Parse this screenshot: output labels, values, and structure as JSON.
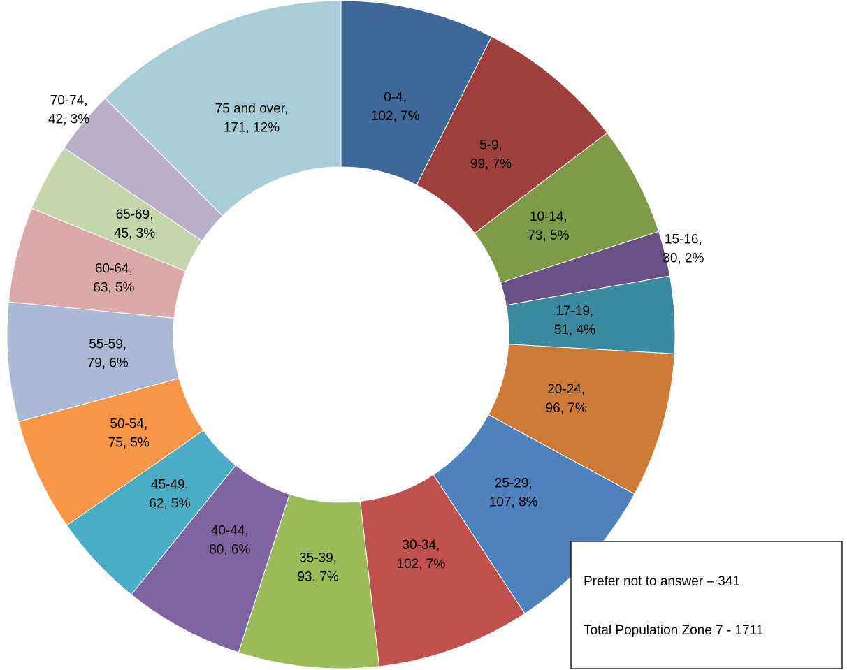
{
  "chart_data": {
    "type": "donut",
    "categories": [
      "0-4,",
      "5-9,",
      "10-14,",
      "15-16,",
      "17-19,",
      "20-24,",
      "25-29,",
      "30-34,",
      "35-39,",
      "40-44,",
      "45-49,",
      "50-54,",
      "55-59,",
      "60-64,",
      "65-69,",
      "70-74,",
      "75 and over,"
    ],
    "values": [
      102,
      99,
      73,
      30,
      51,
      96,
      107,
      102,
      93,
      80,
      62,
      75,
      79,
      63,
      45,
      42,
      171
    ],
    "value_labels": [
      "102, 7%",
      "99, 7%",
      "73, 5%",
      "30, 2%",
      "51, 4%",
      "96, 7%",
      "107, 8%",
      "102, 7%",
      "93, 7%",
      "80, 6%",
      "62, 5%",
      "75, 5%",
      "79, 6%",
      "63, 5%",
      "45, 3%",
      "42, 3%",
      "171, 12%"
    ],
    "colors": [
      "#3f6797",
      "#9e3f3d",
      "#7f9a48",
      "#6a4f86",
      "#3a8ba0",
      "#cc7a36",
      "#4f81bd",
      "#c0504d",
      "#9bbb59",
      "#8064a2",
      "#4bacc6",
      "#f79646",
      "#a9b9d6",
      "#dba9a8",
      "#c6d6ac",
      "#b9afc9",
      "#a8cdd9"
    ],
    "annotations": [
      "Prefer not to answer – 341",
      "Total Population Zone 7 - 1711"
    ]
  }
}
